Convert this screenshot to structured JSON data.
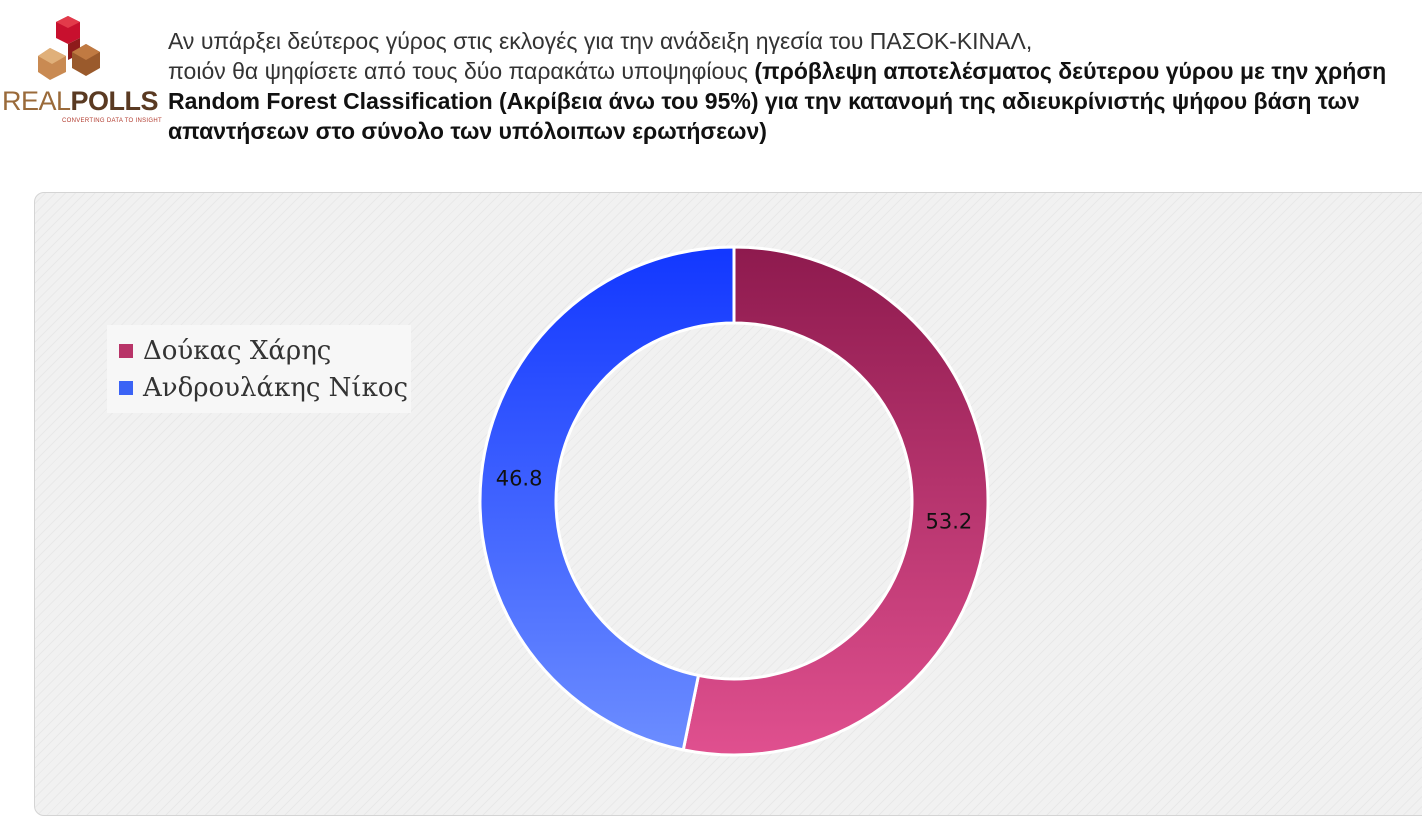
{
  "logo": {
    "word_real": "REAL",
    "word_polls": "POLLS",
    "tagline": "CONVERTING DATA TO INSIGHT"
  },
  "header": {
    "question_line1": "Αν υπάρξει δεύτερος γύρος στις εκλογές για την ανάδειξη ηγεσία του ΠΑΣΟΚ-ΚΙΝΑΛ,",
    "question_line2": "ποιόν θα ψηφίσετε από τους δύο παρακάτω υποψηφίους ",
    "note": "(πρόβλεψη αποτελέσματος δεύτερου γύρου με την χρήση Random Forest Classification (Ακρίβεια άνω του 95%) για την κατανομή της αδιευκρίνιστής ψήφου βάση των απαντήσεων στο σύνολο των  υπόλοιπων ερωτήσεων)"
  },
  "chart_data": {
    "type": "pie",
    "subtype": "donut",
    "title": "",
    "legend_position": "left",
    "series": [
      {
        "name": "Δούκας Χάρης",
        "value": 53.2,
        "color_start": "#8e1a4e",
        "color_end": "#e0508f",
        "legend_color": "#b83468"
      },
      {
        "name": "Ανδρουλάκης Νίκος",
        "value": 46.8,
        "color_start": "#1237ff",
        "color_end": "#6c8dff",
        "legend_color": "#3b63f5"
      }
    ],
    "labels": [
      "53.2",
      "46.8"
    ]
  }
}
